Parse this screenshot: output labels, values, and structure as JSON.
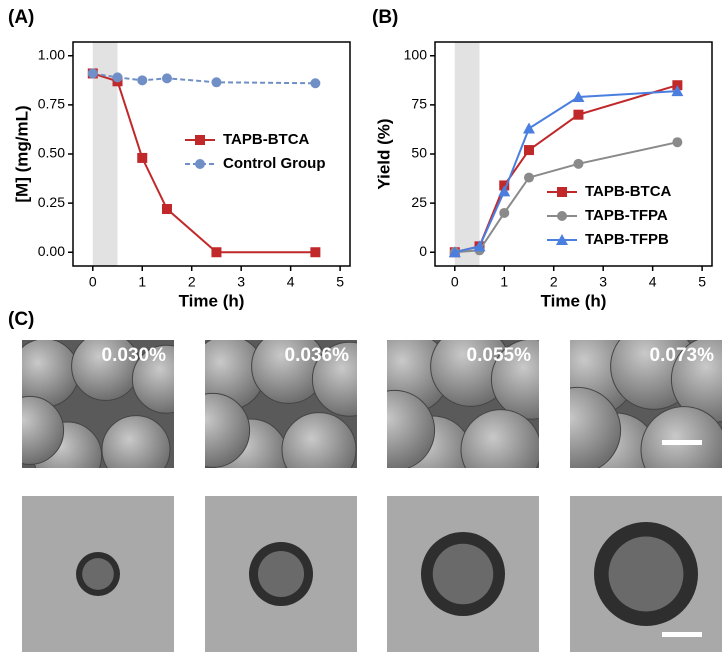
{
  "chart_data": [
    {
      "type": "line",
      "panel_label": "(A)",
      "x_label": "Time (h)",
      "y_label": "[M] (mg/mL)",
      "xlim": [
        -0.4,
        5.2
      ],
      "xticks": [
        0,
        1,
        2,
        3,
        4,
        5
      ],
      "ylim": [
        -0.07,
        1.07
      ],
      "yticks": [
        {
          "value": 0,
          "label": "0.00"
        },
        {
          "value": 0.25,
          "label": "0.25"
        },
        {
          "value": 0.5,
          "label": "0.50"
        },
        {
          "value": 0.75,
          "label": "0.75"
        },
        {
          "value": 1,
          "label": "1.00"
        }
      ],
      "shaded_span": [
        0,
        0.5
      ],
      "legend": "center right",
      "series": [
        {
          "name": "TAPB-BTCA",
          "color": "#c0282a",
          "marker": "square",
          "linestyle": "solid",
          "x": [
            0,
            0.5,
            1,
            1.5,
            2.5,
            4.5
          ],
          "values": [
            0.91,
            0.87,
            0.48,
            0.22,
            0,
            0
          ]
        },
        {
          "name": "Control Group",
          "color": "#6f8fc6",
          "marker": "circle",
          "linestyle": "dashed",
          "x": [
            0,
            0.5,
            1,
            1.5,
            2.5,
            4.5
          ],
          "values": [
            0.91,
            0.89,
            0.875,
            0.885,
            0.865,
            0.86
          ]
        }
      ]
    },
    {
      "type": "line",
      "panel_label": "(B)",
      "x_label": "Time (h)",
      "y_label": "Yield (%)",
      "xlim": [
        -0.4,
        5.2
      ],
      "xticks": [
        0,
        1,
        2,
        3,
        4,
        5
      ],
      "ylim": [
        -7,
        107
      ],
      "yticks": [
        0,
        25,
        50,
        75,
        100
      ],
      "shaded_span": [
        0,
        0.5
      ],
      "legend": "lower right",
      "series": [
        {
          "name": "TAPB-BTCA",
          "color": "#c0282a",
          "marker": "square",
          "linestyle": "solid",
          "x": [
            0,
            0.5,
            1,
            1.5,
            2.5,
            4.5
          ],
          "values": [
            0,
            3,
            34,
            52,
            70,
            85
          ]
        },
        {
          "name": "TAPB-TFPA",
          "color": "#8a8a8a",
          "marker": "circle",
          "linestyle": "solid",
          "x": [
            0,
            0.5,
            1,
            1.5,
            2.5,
            4.5
          ],
          "values": [
            0,
            1,
            20,
            38,
            45,
            56
          ]
        },
        {
          "name": "TAPB-TFPB",
          "color": "#4a7fe0",
          "marker": "triangle",
          "linestyle": "solid",
          "x": [
            0,
            0.5,
            1,
            1.5,
            2.5,
            4.5
          ],
          "values": [
            0,
            3,
            31,
            63,
            79,
            82
          ]
        }
      ]
    }
  ],
  "panel_c": {
    "label": "(C)",
    "concentrations": [
      "0.030%",
      "0.036%",
      "0.055%",
      "0.073%"
    ]
  }
}
